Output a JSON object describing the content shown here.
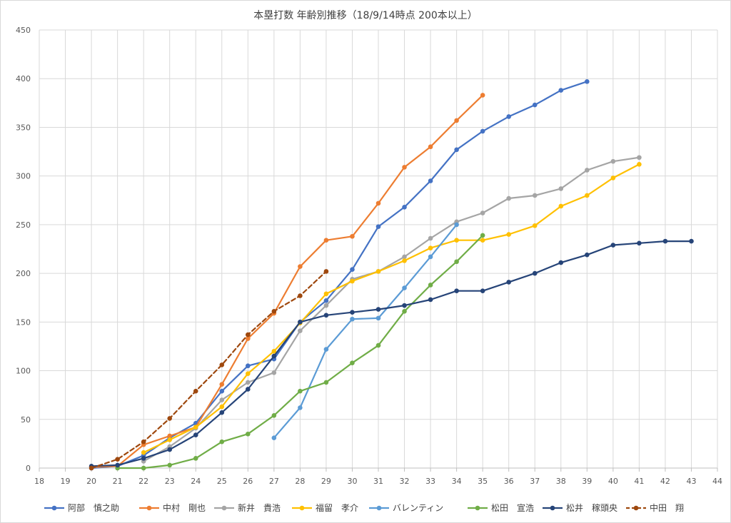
{
  "chart_data": {
    "type": "line",
    "title": "本塁打数 年齢別推移（18/9/14時点 200本以上）",
    "xlabel": "",
    "ylabel": "",
    "xlim": [
      18,
      44
    ],
    "ylim": [
      0,
      450
    ],
    "x_ticks": [
      "18",
      "19",
      "20",
      "21",
      "22",
      "23",
      "24",
      "25",
      "26",
      "27",
      "28",
      "29",
      "30",
      "31",
      "32",
      "33",
      "34",
      "35",
      "36",
      "37",
      "38",
      "39",
      "40",
      "41",
      "42",
      "43",
      "44"
    ],
    "y_ticks": [
      "0",
      "50",
      "100",
      "150",
      "200",
      "250",
      "300",
      "350",
      "400",
      "450"
    ],
    "grid": true,
    "legend_position": "bottom",
    "series": [
      {
        "name": "阿部　慎之助",
        "color": "#4472C4",
        "dash": false,
        "x": [
          20,
          21,
          22,
          23,
          24,
          25,
          26,
          27,
          28,
          29,
          30,
          31,
          32,
          33,
          34,
          35,
          36,
          37,
          38,
          39
        ],
        "values": [
          0,
          2,
          13,
          31,
          46,
          79,
          105,
          112,
          150,
          172,
          204,
          248,
          268,
          295,
          327,
          346,
          361,
          373,
          388,
          397
        ]
      },
      {
        "name": "中村　剛也",
        "color": "#ED7D31",
        "dash": false,
        "x": [
          20,
          21,
          22,
          23,
          24,
          25,
          26,
          27,
          28,
          29,
          30,
          31,
          32,
          33,
          34,
          35
        ],
        "values": [
          1,
          2,
          24,
          33,
          42,
          86,
          133,
          159,
          207,
          234,
          238,
          272,
          309,
          330,
          357,
          383
        ]
      },
      {
        "name": "新井　貴浩",
        "color": "#A5A5A5",
        "dash": false,
        "x": [
          22,
          23,
          24,
          25,
          26,
          27,
          28,
          29,
          30,
          31,
          32,
          33,
          34,
          35,
          36,
          37,
          38,
          39,
          40,
          41
        ],
        "values": [
          7,
          22,
          41,
          70,
          88,
          98,
          141,
          167,
          194,
          202,
          217,
          236,
          253,
          262,
          277,
          280,
          287,
          306,
          315,
          319
        ]
      },
      {
        "name": "福留　孝介",
        "color": "#FFC000",
        "dash": false,
        "x": [
          22,
          23,
          24,
          25,
          26,
          27,
          28,
          29,
          30,
          31,
          32,
          33,
          34,
          35,
          36,
          37,
          38,
          39,
          40,
          41
        ],
        "values": [
          16,
          29,
          42,
          63,
          97,
          120,
          149,
          179,
          192,
          202,
          213,
          226,
          234,
          234,
          240,
          249,
          269,
          280,
          298,
          312
        ]
      },
      {
        "name": "バレンティン",
        "color": "#5B9BD5",
        "dash": false,
        "x": [
          27,
          28,
          29,
          30,
          31,
          32,
          33,
          34
        ],
        "values": [
          31,
          62,
          122,
          153,
          154,
          185,
          217,
          250
        ]
      },
      {
        "name": "松田　宣浩",
        "color": "#70AD47",
        "dash": false,
        "x": [
          21,
          22,
          23,
          24,
          25,
          26,
          27,
          28,
          29,
          30,
          31,
          32,
          33,
          34,
          35
        ],
        "values": [
          0,
          0,
          3,
          10,
          27,
          35,
          54,
          79,
          88,
          108,
          126,
          161,
          188,
          212,
          239
        ]
      },
      {
        "name": "松井　稼頭央",
        "color": "#264478",
        "dash": false,
        "x": [
          20,
          21,
          22,
          23,
          24,
          25,
          26,
          27,
          28,
          29,
          30,
          31,
          32,
          33,
          34,
          35,
          36,
          37,
          38,
          39,
          40,
          41,
          42,
          43
        ],
        "values": [
          2,
          3,
          10,
          19,
          34,
          57,
          81,
          115,
          150,
          157,
          160,
          163,
          167,
          173,
          182,
          182,
          191,
          200,
          211,
          219,
          229,
          231,
          233,
          233
        ]
      },
      {
        "name": "中田　翔",
        "color": "#9E480E",
        "dash": true,
        "x": [
          20,
          21,
          22,
          23,
          24,
          25,
          26,
          27,
          28,
          29
        ],
        "values": [
          0,
          9,
          27,
          51,
          79,
          106,
          137,
          161,
          177,
          202
        ]
      }
    ]
  }
}
